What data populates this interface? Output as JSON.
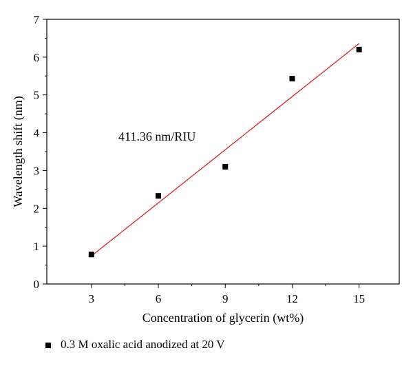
{
  "chart_data": {
    "type": "scatter",
    "xlabel": "Concentration of glycerin (wt%)",
    "ylabel": "Wavelength shift (nm)",
    "xlim": [
      1,
      16.8
    ],
    "ylim": [
      0,
      7
    ],
    "x_ticks": [
      3,
      6,
      9,
      12,
      15
    ],
    "y_ticks": [
      0,
      1,
      2,
      3,
      4,
      5,
      6,
      7
    ],
    "grid": false,
    "legend_position": "bottom-left, below plot",
    "annotation": "411.36 nm/RIU",
    "series": [
      {
        "name": "0.3 M oxalic acid anodized at 20 V",
        "marker": "square",
        "color": "#000000",
        "points": [
          {
            "x": 3,
            "y": 0.78
          },
          {
            "x": 6,
            "y": 2.33
          },
          {
            "x": 9,
            "y": 3.1
          },
          {
            "x": 12,
            "y": 5.43
          },
          {
            "x": 15,
            "y": 6.2
          }
        ]
      }
    ],
    "fit_line": {
      "color": "#e0201c",
      "from": {
        "x": 3,
        "y": 0.74
      },
      "to": {
        "x": 15,
        "y": 6.36
      }
    }
  }
}
